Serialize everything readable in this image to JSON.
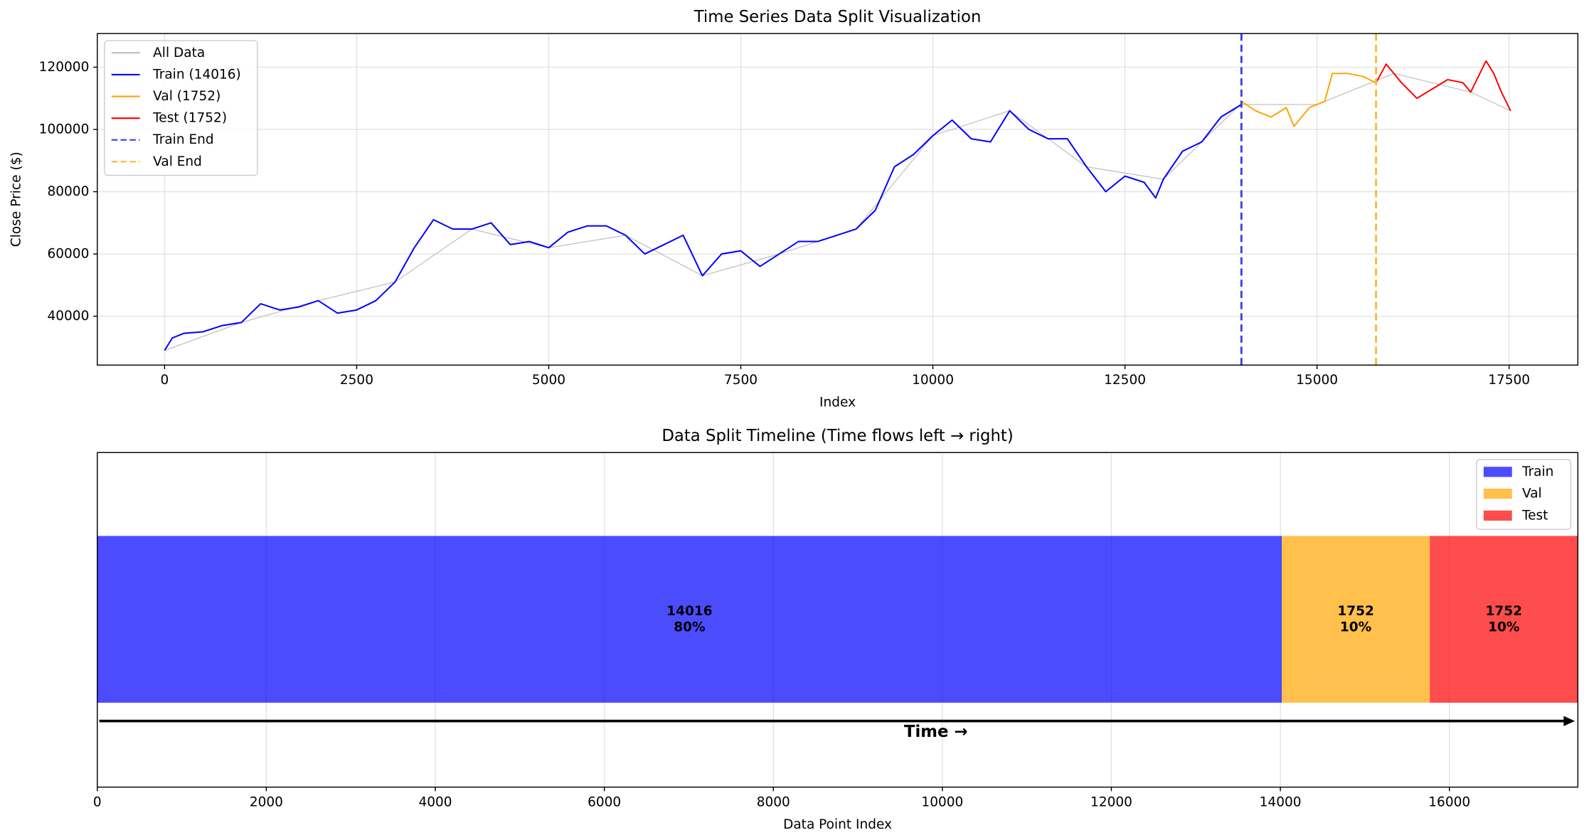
{
  "chart_data": [
    {
      "type": "line",
      "title": "Time Series Data Split Visualization",
      "x_label": "Index",
      "y_label": "Close Price ($)",
      "xlim": [
        -876,
        18395
      ],
      "ylim": [
        24300,
        130800
      ],
      "xticks": [
        0,
        2500,
        5000,
        7500,
        10000,
        12500,
        15000,
        17500
      ],
      "yticks": [
        40000,
        60000,
        80000,
        100000,
        120000
      ],
      "grid": true,
      "legend": "upper left",
      "series": [
        {
          "name": "All Data",
          "color": "#bbbbbb",
          "x": [
            0,
            1000,
            2000,
            3000,
            4000,
            5000,
            6000,
            7000,
            8000,
            9000,
            10000,
            11000,
            12000,
            13000,
            14000,
            15000,
            16000,
            17000,
            17519
          ],
          "values": [
            29000,
            38000,
            45000,
            51000,
            68000,
            62000,
            66000,
            53000,
            60000,
            68000,
            98000,
            106000,
            88000,
            84000,
            108000,
            108000,
            118000,
            112000,
            106000
          ]
        },
        {
          "name": "Train (14016)",
          "color": "#0000ff",
          "x": [
            0,
            100,
            250,
            500,
            750,
            1000,
            1250,
            1500,
            1750,
            2000,
            2250,
            2500,
            2750,
            3000,
            3250,
            3500,
            3750,
            4000,
            4250,
            4500,
            4750,
            5000,
            5250,
            5500,
            5750,
            6000,
            6250,
            6500,
            6750,
            7000,
            7250,
            7500,
            7750,
            8000,
            8250,
            8500,
            8750,
            9000,
            9250,
            9500,
            9750,
            10000,
            10250,
            10500,
            10750,
            11000,
            11250,
            11500,
            11750,
            12000,
            12250,
            12500,
            12750,
            12900,
            13000,
            13250,
            13500,
            13750,
            14015
          ],
          "values": [
            29000,
            33000,
            34500,
            35000,
            37000,
            38000,
            44000,
            42000,
            43000,
            45000,
            41000,
            42000,
            45000,
            51000,
            62000,
            71000,
            68000,
            68000,
            70000,
            63000,
            64000,
            62000,
            67000,
            69000,
            69000,
            66000,
            60000,
            63000,
            66000,
            53000,
            60000,
            61000,
            56000,
            60000,
            64000,
            64000,
            66000,
            68000,
            74000,
            88000,
            92000,
            98000,
            103000,
            97000,
            96000,
            106000,
            100000,
            97000,
            97000,
            88000,
            80000,
            85000,
            83000,
            78000,
            84000,
            93000,
            96000,
            104000,
            108000
          ]
        },
        {
          "name": "Val (1752)",
          "color": "#ffa500",
          "x": [
            14016,
            14200,
            14400,
            14600,
            14700,
            14900,
            15100,
            15200,
            15400,
            15600,
            15767
          ],
          "values": [
            109000,
            106000,
            104000,
            107000,
            101000,
            107000,
            109000,
            118000,
            118000,
            117000,
            115000
          ]
        },
        {
          "name": "Test (1752)",
          "color": "#ff0000",
          "x": [
            15768,
            15900,
            16100,
            16300,
            16500,
            16700,
            16900,
            17000,
            17200,
            17300,
            17400,
            17519
          ],
          "values": [
            115000,
            121000,
            115000,
            110000,
            113000,
            116000,
            115000,
            112000,
            122000,
            118000,
            112000,
            106000
          ]
        }
      ],
      "vlines": [
        {
          "name": "Train End",
          "x": 14016,
          "color": "#3b3bf0"
        },
        {
          "name": "Val End",
          "x": 15768,
          "color": "#ffb733"
        }
      ]
    },
    {
      "type": "bar",
      "orientation": "horizontal",
      "stacked": true,
      "title": "Data Split Timeline (Time flows left → right)",
      "x_label": "Data Point Index",
      "xlim": [
        0,
        17520
      ],
      "xticks": [
        0,
        2000,
        4000,
        6000,
        8000,
        10000,
        12000,
        14000,
        16000
      ],
      "grid": true,
      "legend": "upper right",
      "alpha": 0.7,
      "series": [
        {
          "name": "Train",
          "color": "#0000ff",
          "values": [
            14016
          ],
          "share_labels": [
            "80%"
          ]
        },
        {
          "name": "Val",
          "color": "#ffa500",
          "values": [
            1752
          ],
          "share_labels": [
            "10%"
          ]
        },
        {
          "name": "Test",
          "color": "#ff0000",
          "values": [
            1752
          ],
          "share_labels": [
            "10%"
          ]
        }
      ],
      "annotation": "Time →"
    }
  ]
}
